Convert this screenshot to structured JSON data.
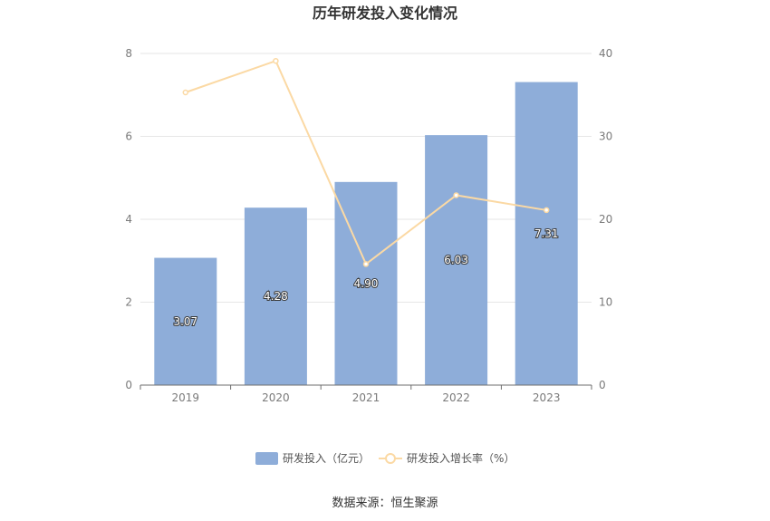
{
  "chart_data": {
    "type": "bar",
    "title": "历年研发投入变化情况",
    "categories": [
      "2019",
      "2020",
      "2021",
      "2022",
      "2023"
    ],
    "series": [
      {
        "name": "研发投入（亿元）",
        "type": "bar",
        "axis": "left",
        "values": [
          3.07,
          4.28,
          4.9,
          6.03,
          7.31
        ],
        "labels": [
          "3.07",
          "4.28",
          "4.90",
          "6.03",
          "7.31"
        ],
        "color": "#8eadd9"
      },
      {
        "name": "研发投入增长率（%）",
        "type": "line",
        "axis": "right",
        "values": [
          35.3,
          39.1,
          14.6,
          22.9,
          21.1
        ],
        "color": "#fbd9a4"
      }
    ],
    "y_left": {
      "min": 0,
      "max": 8,
      "ticks": [
        "0",
        "2",
        "4",
        "6",
        "8"
      ]
    },
    "y_right": {
      "min": 0,
      "max": 40,
      "ticks": [
        "0",
        "10",
        "20",
        "30",
        "40"
      ]
    },
    "grid": true,
    "legend": "bottom-center"
  },
  "footer": {
    "source": "数据来源：恒生聚源"
  }
}
